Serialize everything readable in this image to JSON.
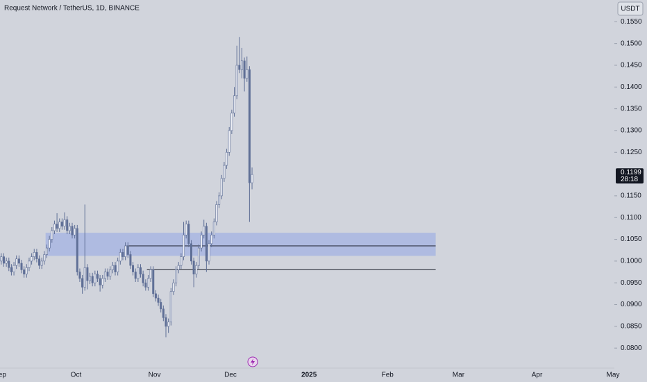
{
  "chart_data": {
    "type": "candlestick",
    "title": "Request Network / TetherUS, 1D, BINANCE",
    "currency": "USDT",
    "up_color": "#eef0f6",
    "down_color": "#5f6f96",
    "outline_color": "#5f6f96",
    "zone_color": "#a9b6e2",
    "grid": false,
    "ohlc": [
      [
        0.1,
        0.1018,
        0.0992,
        0.101
      ],
      [
        0.101,
        0.1018,
        0.0987,
        0.0995
      ],
      [
        0.0995,
        0.1008,
        0.0987,
        0.1
      ],
      [
        0.1,
        0.1008,
        0.0977,
        0.0985
      ],
      [
        0.0985,
        0.0993,
        0.0967,
        0.0975
      ],
      [
        0.0975,
        0.0998,
        0.0967,
        0.099
      ],
      [
        0.099,
        0.1013,
        0.0982,
        0.1005
      ],
      [
        0.1005,
        0.1013,
        0.0987,
        0.0995
      ],
      [
        0.0995,
        0.1003,
        0.0972,
        0.098
      ],
      [
        0.098,
        0.0988,
        0.0962,
        0.097
      ],
      [
        0.097,
        0.0993,
        0.0962,
        0.0985
      ],
      [
        0.0985,
        0.1008,
        0.0977,
        0.1
      ],
      [
        0.1,
        0.1018,
        0.0992,
        0.101
      ],
      [
        0.101,
        0.1028,
        0.1002,
        0.102
      ],
      [
        0.102,
        0.1028,
        0.0997,
        0.1005
      ],
      [
        0.1005,
        0.1013,
        0.0982,
        0.099
      ],
      [
        0.099,
        0.1008,
        0.0982,
        0.1
      ],
      [
        0.1,
        0.1023,
        0.0992,
        0.1015
      ],
      [
        0.1015,
        0.1038,
        0.1007,
        0.103
      ],
      [
        0.103,
        0.1058,
        0.1022,
        0.105
      ],
      [
        0.105,
        0.1078,
        0.1042,
        0.107
      ],
      [
        0.107,
        0.1093,
        0.1062,
        0.1085
      ],
      [
        0.1085,
        0.111,
        0.1067,
        0.1075
      ],
      [
        0.1075,
        0.1098,
        0.1067,
        0.109
      ],
      [
        0.109,
        0.1098,
        0.1072,
        0.108
      ],
      [
        0.108,
        0.1112,
        0.1072,
        0.1095
      ],
      [
        0.1095,
        0.1103,
        0.1062,
        0.107
      ],
      [
        0.107,
        0.1088,
        0.1062,
        0.108
      ],
      [
        0.108,
        0.1088,
        0.1052,
        0.106
      ],
      [
        0.106,
        0.1083,
        0.1052,
        0.1075
      ],
      [
        0.1075,
        0.1083,
        0.0967,
        0.0975
      ],
      [
        0.0975,
        0.0983,
        0.0952,
        0.096
      ],
      [
        0.096,
        0.0968,
        0.0925,
        0.094
      ],
      [
        0.094,
        0.113,
        0.0932,
        0.0985
      ],
      [
        0.0985,
        0.0993,
        0.0935,
        0.0955
      ],
      [
        0.0955,
        0.0973,
        0.0947,
        0.0965
      ],
      [
        0.0965,
        0.0973,
        0.0942,
        0.095
      ],
      [
        0.095,
        0.0978,
        0.0942,
        0.097
      ],
      [
        0.097,
        0.0978,
        0.0952,
        0.096
      ],
      [
        0.096,
        0.0968,
        0.093,
        0.0945
      ],
      [
        0.0945,
        0.0968,
        0.0937,
        0.096
      ],
      [
        0.096,
        0.0983,
        0.0952,
        0.0975
      ],
      [
        0.0975,
        0.0983,
        0.0957,
        0.0965
      ],
      [
        0.0965,
        0.0988,
        0.0957,
        0.098
      ],
      [
        0.098,
        0.0998,
        0.0972,
        0.099
      ],
      [
        0.099,
        0.0998,
        0.0967,
        0.0975
      ],
      [
        0.0975,
        0.1008,
        0.0967,
        0.1
      ],
      [
        0.1,
        0.1028,
        0.0992,
        0.102
      ],
      [
        0.102,
        0.1028,
        0.1002,
        0.101
      ],
      [
        0.101,
        0.1043,
        0.1002,
        0.1035
      ],
      [
        0.1035,
        0.1043,
        0.1007,
        0.1015
      ],
      [
        0.1015,
        0.1023,
        0.0982,
        0.099
      ],
      [
        0.099,
        0.0998,
        0.0967,
        0.0975
      ],
      [
        0.0975,
        0.0983,
        0.0952,
        0.096
      ],
      [
        0.096,
        0.0993,
        0.0952,
        0.0985
      ],
      [
        0.0985,
        0.0993,
        0.0962,
        0.097
      ],
      [
        0.097,
        0.0978,
        0.0942,
        0.095
      ],
      [
        0.095,
        0.0958,
        0.0932,
        0.094
      ],
      [
        0.094,
        0.0968,
        0.0932,
        0.096
      ],
      [
        0.096,
        0.0988,
        0.0952,
        0.098
      ],
      [
        0.098,
        0.0988,
        0.0917,
        0.0925
      ],
      [
        0.0925,
        0.0933,
        0.0907,
        0.0915
      ],
      [
        0.0915,
        0.0923,
        0.0897,
        0.0905
      ],
      [
        0.0905,
        0.0913,
        0.0882,
        0.089
      ],
      [
        0.089,
        0.0898,
        0.0862,
        0.087
      ],
      [
        0.087,
        0.0878,
        0.0825,
        0.085
      ],
      [
        0.085,
        0.0868,
        0.0835,
        0.086
      ],
      [
        0.086,
        0.0938,
        0.0852,
        0.093
      ],
      [
        0.093,
        0.0958,
        0.0922,
        0.095
      ],
      [
        0.095,
        0.0988,
        0.0942,
        0.098
      ],
      [
        0.098,
        0.0998,
        0.0972,
        0.099
      ],
      [
        0.099,
        0.1018,
        0.0982,
        0.101
      ],
      [
        0.101,
        0.109,
        0.1002,
        0.106
      ],
      [
        0.106,
        0.1093,
        0.1052,
        0.1085
      ],
      [
        0.1085,
        0.1093,
        0.1032,
        0.104
      ],
      [
        0.104,
        0.1048,
        0.0992,
        0.1
      ],
      [
        0.1,
        0.1008,
        0.094,
        0.097
      ],
      [
        0.097,
        0.0998,
        0.0962,
        0.099
      ],
      [
        0.099,
        0.1038,
        0.0982,
        0.103
      ],
      [
        0.103,
        0.1068,
        0.1022,
        0.106
      ],
      [
        0.106,
        0.1095,
        0.1052,
        0.108
      ],
      [
        0.108,
        0.1088,
        0.0975,
        0.1
      ],
      [
        0.1,
        0.1048,
        0.0992,
        0.104
      ],
      [
        0.104,
        0.1068,
        0.1032,
        0.106
      ],
      [
        0.106,
        0.1098,
        0.1052,
        0.109
      ],
      [
        0.109,
        0.1138,
        0.1082,
        0.113
      ],
      [
        0.113,
        0.1158,
        0.1122,
        0.115
      ],
      [
        0.115,
        0.1198,
        0.1142,
        0.119
      ],
      [
        0.119,
        0.1228,
        0.1182,
        0.122
      ],
      [
        0.122,
        0.1258,
        0.1212,
        0.125
      ],
      [
        0.125,
        0.1308,
        0.1242,
        0.13
      ],
      [
        0.13,
        0.1348,
        0.1292,
        0.134
      ],
      [
        0.134,
        0.14,
        0.1332,
        0.138
      ],
      [
        0.138,
        0.1495,
        0.1372,
        0.145
      ],
      [
        0.145,
        0.1515,
        0.1432,
        0.144
      ],
      [
        0.144,
        0.149,
        0.142,
        0.146
      ],
      [
        0.146,
        0.1468,
        0.139,
        0.142
      ],
      [
        0.142,
        0.147,
        0.1412,
        0.144
      ],
      [
        0.144,
        0.1448,
        0.109,
        0.118
      ],
      [
        0.118,
        0.1215,
        0.1165,
        0.1199
      ]
    ],
    "zones": [
      {
        "low": 0.1012,
        "high": 0.1065,
        "x": [
          18,
          172
        ]
      }
    ],
    "levels": [
      {
        "value": 0.1035,
        "x": [
          50,
          172
        ]
      },
      {
        "value": 0.098,
        "x": [
          58,
          172
        ]
      }
    ],
    "price_label": {
      "value": 0.1199,
      "label": "0.1199",
      "countdown": "28:18"
    },
    "xlim": [
      0,
      242
    ],
    "xticks": [
      {
        "value": 0,
        "label": "Sep"
      },
      {
        "value": 30,
        "label": "Oct"
      },
      {
        "value": 61,
        "label": "Nov"
      },
      {
        "value": 91,
        "label": "Dec"
      },
      {
        "value": 122,
        "label": "2025"
      },
      {
        "value": 153,
        "label": "Feb"
      },
      {
        "value": 181,
        "label": "Mar"
      },
      {
        "value": 212,
        "label": "Apr"
      },
      {
        "value": 242,
        "label": "May"
      }
    ],
    "ylim": [
      0.0754,
      0.16
    ],
    "yticks": [
      {
        "value": 0.08,
        "label": "0.0800"
      },
      {
        "value": 0.085,
        "label": "0.0850"
      },
      {
        "value": 0.09,
        "label": "0.0900"
      },
      {
        "value": 0.095,
        "label": "0.0950"
      },
      {
        "value": 0.1,
        "label": "0.1000"
      },
      {
        "value": 0.105,
        "label": "0.1050"
      },
      {
        "value": 0.11,
        "label": "0.1100"
      },
      {
        "value": 0.115,
        "label": "0.1150"
      },
      {
        "value": 0.125,
        "label": "0.1250"
      },
      {
        "value": 0.13,
        "label": "0.1300"
      },
      {
        "value": 0.135,
        "label": "0.1350"
      },
      {
        "value": 0.14,
        "label": "0.1400"
      },
      {
        "value": 0.145,
        "label": "0.1450"
      },
      {
        "value": 0.15,
        "label": "0.1500"
      },
      {
        "value": 0.155,
        "label": "0.1550"
      }
    ]
  }
}
